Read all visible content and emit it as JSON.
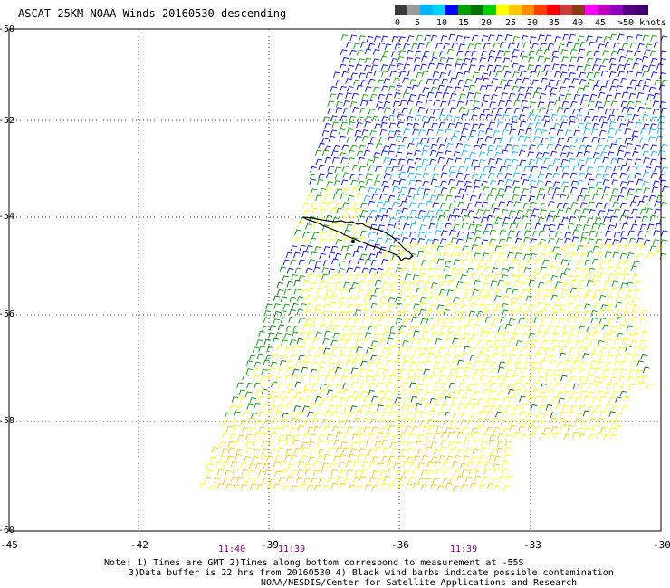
{
  "title": "ASCAT 25KM NOAA Winds 20160530 descending",
  "colorbar": {
    "labels": [
      "0",
      "5",
      "10",
      "15",
      "20",
      "25",
      "30",
      "35",
      "40",
      "45",
      ">50 knots"
    ],
    "colors": [
      "#3a3a3a",
      "#9a9a9a",
      "#00b4ff",
      "#00d2ff",
      "#0000ff",
      "#00a000",
      "#007000",
      "#00d000",
      "#ffff00",
      "#ffc800",
      "#ff8c00",
      "#ff4000",
      "#ff0000",
      "#c83c3c",
      "#8c3c14",
      "#ff00ff",
      "#c000c0",
      "#9000c0",
      "#500080",
      "#400070"
    ]
  },
  "map": {
    "lat_labels": [
      "-50",
      "-52",
      "-54",
      "-56",
      "-58",
      "-60"
    ],
    "lon_labels": [
      "-45",
      "-42",
      "-39",
      "-36",
      "-33",
      "-30"
    ],
    "time_labels": [
      "11:40",
      "11:39",
      "11:39"
    ]
  },
  "notes": {
    "line1": "Note: 1) Times are GMT 2)Times along bottom correspond to measurement at -55S",
    "line2": "3)Data buffer is 22 hrs from 20160530 4) Black wind barbs indicate possible contamination",
    "line3": "NOAA/NESDIS/Center for Satellite Applications and Research"
  }
}
